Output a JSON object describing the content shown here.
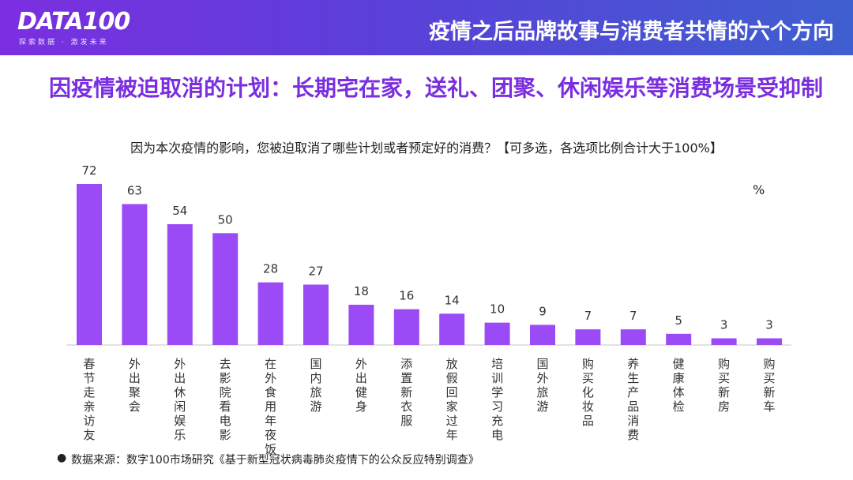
{
  "header": {
    "logo": "DATA100",
    "logo_tagline": "探索数据 · 激发未来",
    "title": "疫情之后品牌故事与消费者共情的六个方向"
  },
  "slide": {
    "title": "因疫情被迫取消的计划：长期宅在家，送礼、团聚、休闲娱乐等消费场景受抑制",
    "question": "因为本次疫情的影响，您被迫取消了哪些计划或者预定好的消费？【可多选，各选项比例合计大于100%】",
    "unit": "%",
    "source_bullet": "●",
    "source": "数据来源：数字100市场研究《基于新型冠状病毒肺炎疫情下的公众反应特别调查》"
  },
  "chart_data": {
    "type": "bar",
    "categories": [
      "春节走亲访友",
      "外出聚会",
      "外出休闲娱乐",
      "去影院看电影",
      "在外食用年夜饭",
      "国内旅游",
      "外出健身",
      "添置新衣服",
      "放假回家过年",
      "培训 学习充电",
      "国外旅游",
      "购买化妆品",
      "养生产品消费",
      "健康体检",
      "购买新房",
      "购买新车"
    ],
    "values": [
      72,
      63,
      54,
      50,
      28,
      27,
      18,
      16,
      14,
      10,
      9,
      7,
      7,
      5,
      3,
      3
    ],
    "ylim": [
      0,
      80
    ],
    "grid": false,
    "bar_color": "#9b4bf5",
    "axis_color": "#d9d9d9"
  },
  "colors": {
    "accent": "#7a2ee0",
    "header_start": "#7b2fe0",
    "header_end": "#3f5fd0"
  }
}
